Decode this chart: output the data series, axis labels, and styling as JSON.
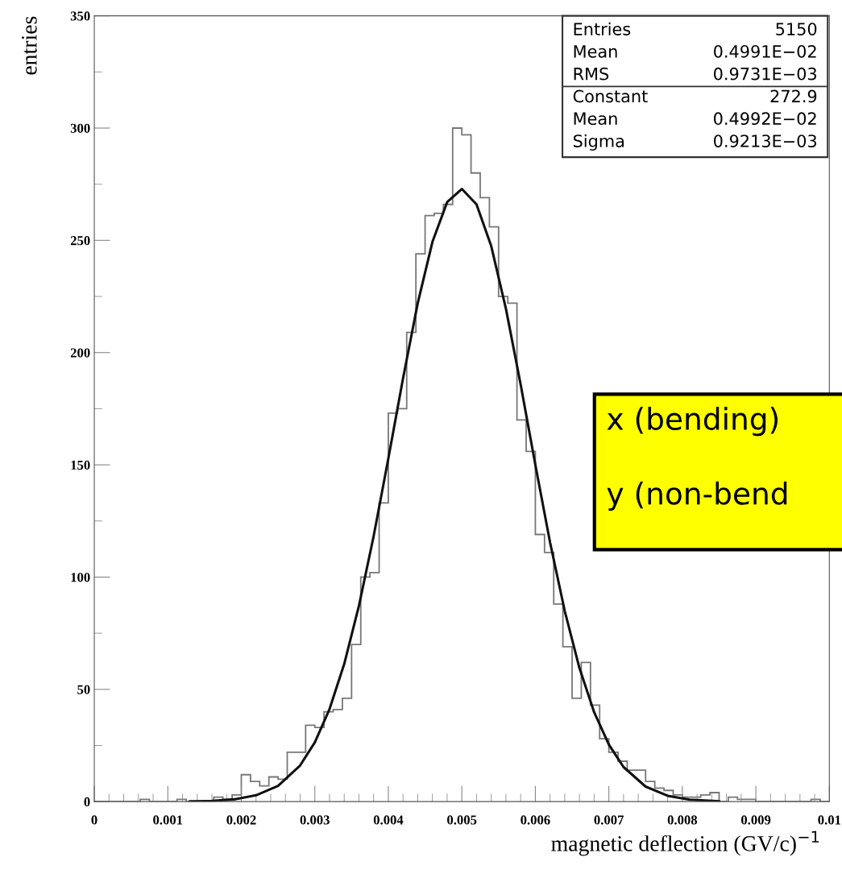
{
  "chart_data": {
    "type": "histogram",
    "xlabel": "magnetic deflection (GV/c)$^{−1}$",
    "ylabel": "entries",
    "bins": [
      0,
      0.000125,
      0.00025,
      0.000375,
      0.0005,
      0.000625,
      0.00075,
      0.000875,
      0.001,
      0.001125,
      0.00125,
      0.001375,
      0.0015,
      0.001625,
      0.00175,
      0.001875,
      0.002,
      0.002125,
      0.00225,
      0.002375,
      0.0025,
      0.002625,
      0.00275,
      0.002875,
      0.003,
      0.003125,
      0.00325,
      0.003375,
      0.0035,
      0.003625,
      0.00375,
      0.003875,
      0.004,
      0.004125,
      0.00425,
      0.004375,
      0.0045,
      0.004625,
      0.00475,
      0.004875,
      0.005,
      0.005125,
      0.00525,
      0.005375,
      0.0055,
      0.005625,
      0.00575,
      0.005875,
      0.006,
      0.006125,
      0.00625,
      0.006375,
      0.0065,
      0.006625,
      0.00675,
      0.006875,
      0.007,
      0.007125,
      0.00725,
      0.007375,
      0.0075,
      0.007625,
      0.00775,
      0.007875,
      0.008,
      0.008125,
      0.00825,
      0.008375,
      0.0085,
      0.008625,
      0.00875,
      0.008875,
      0.009,
      0.009125,
      0.00925,
      0.009375,
      0.0095,
      0.009625,
      0.00975,
      0.009875,
      0.01
    ],
    "values": [
      0,
      0,
      0,
      0,
      0,
      1,
      0,
      0,
      0,
      1,
      0,
      0,
      0,
      2,
      1,
      3,
      12,
      9,
      7,
      11,
      10,
      22,
      22,
      34,
      33,
      40,
      41,
      46,
      70,
      100,
      102,
      133,
      173,
      175,
      209,
      244,
      261,
      262,
      266,
      300,
      297,
      280,
      269,
      256,
      225,
      222,
      170,
      156,
      119,
      111,
      88,
      69,
      46,
      62,
      43,
      28,
      22,
      18,
      14,
      14,
      9,
      6,
      5,
      3,
      2,
      2,
      3,
      4,
      0,
      2,
      1,
      1,
      0,
      0,
      0,
      0,
      0,
      0,
      1,
      0
    ],
    "color": "#777777",
    "series": [
      {
        "type": "line",
        "color": "#111111",
        "x": [
          0.0013,
          0.0016,
          0.0019,
          0.0022,
          0.0025,
          0.0028,
          0.003,
          0.0032,
          0.0034,
          0.0036,
          0.0038,
          0.004,
          0.0042,
          0.0044,
          0.0046,
          0.0048,
          0.005,
          0.0052,
          0.0054,
          0.0056,
          0.0058,
          0.006,
          0.0062,
          0.0064,
          0.0066,
          0.0068,
          0.007,
          0.0072,
          0.0075,
          0.0078,
          0.0081,
          0.0085
        ],
        "values": [
          0.1,
          0.3,
          1.0,
          2.8,
          7.0,
          16.1,
          26.4,
          41.2,
          61.3,
          87.2,
          118.2,
          152.8,
          188.5,
          222.0,
          249.3,
          267.0,
          272.9,
          266.0,
          247.4,
          219.5,
          185.8,
          150.0,
          115.5,
          84.9,
          59.5,
          39.8,
          25.4,
          15.4,
          6.7,
          2.6,
          0.9,
          0.2
        ]
      }
    ],
    "xlim": [
      0,
      0.01
    ],
    "ylim": [
      0,
      350
    ],
    "xticks": [
      0,
      0.001,
      0.002,
      0.003,
      0.004,
      0.005,
      0.006,
      0.007,
      0.008,
      0.009,
      0.01
    ],
    "yticks": [
      0,
      50,
      100,
      150,
      200,
      250,
      300,
      350
    ],
    "annotations": [
      "Entries",
      "5150",
      "Mean",
      "0.4991E−02",
      "RMS",
      "0.9731E−03",
      "Constant",
      "272.9",
      "Mean",
      "0.4992E−02",
      "Sigma",
      "0.9213E−03",
      "x (bending)",
      "y (non-bend"
    ]
  }
}
